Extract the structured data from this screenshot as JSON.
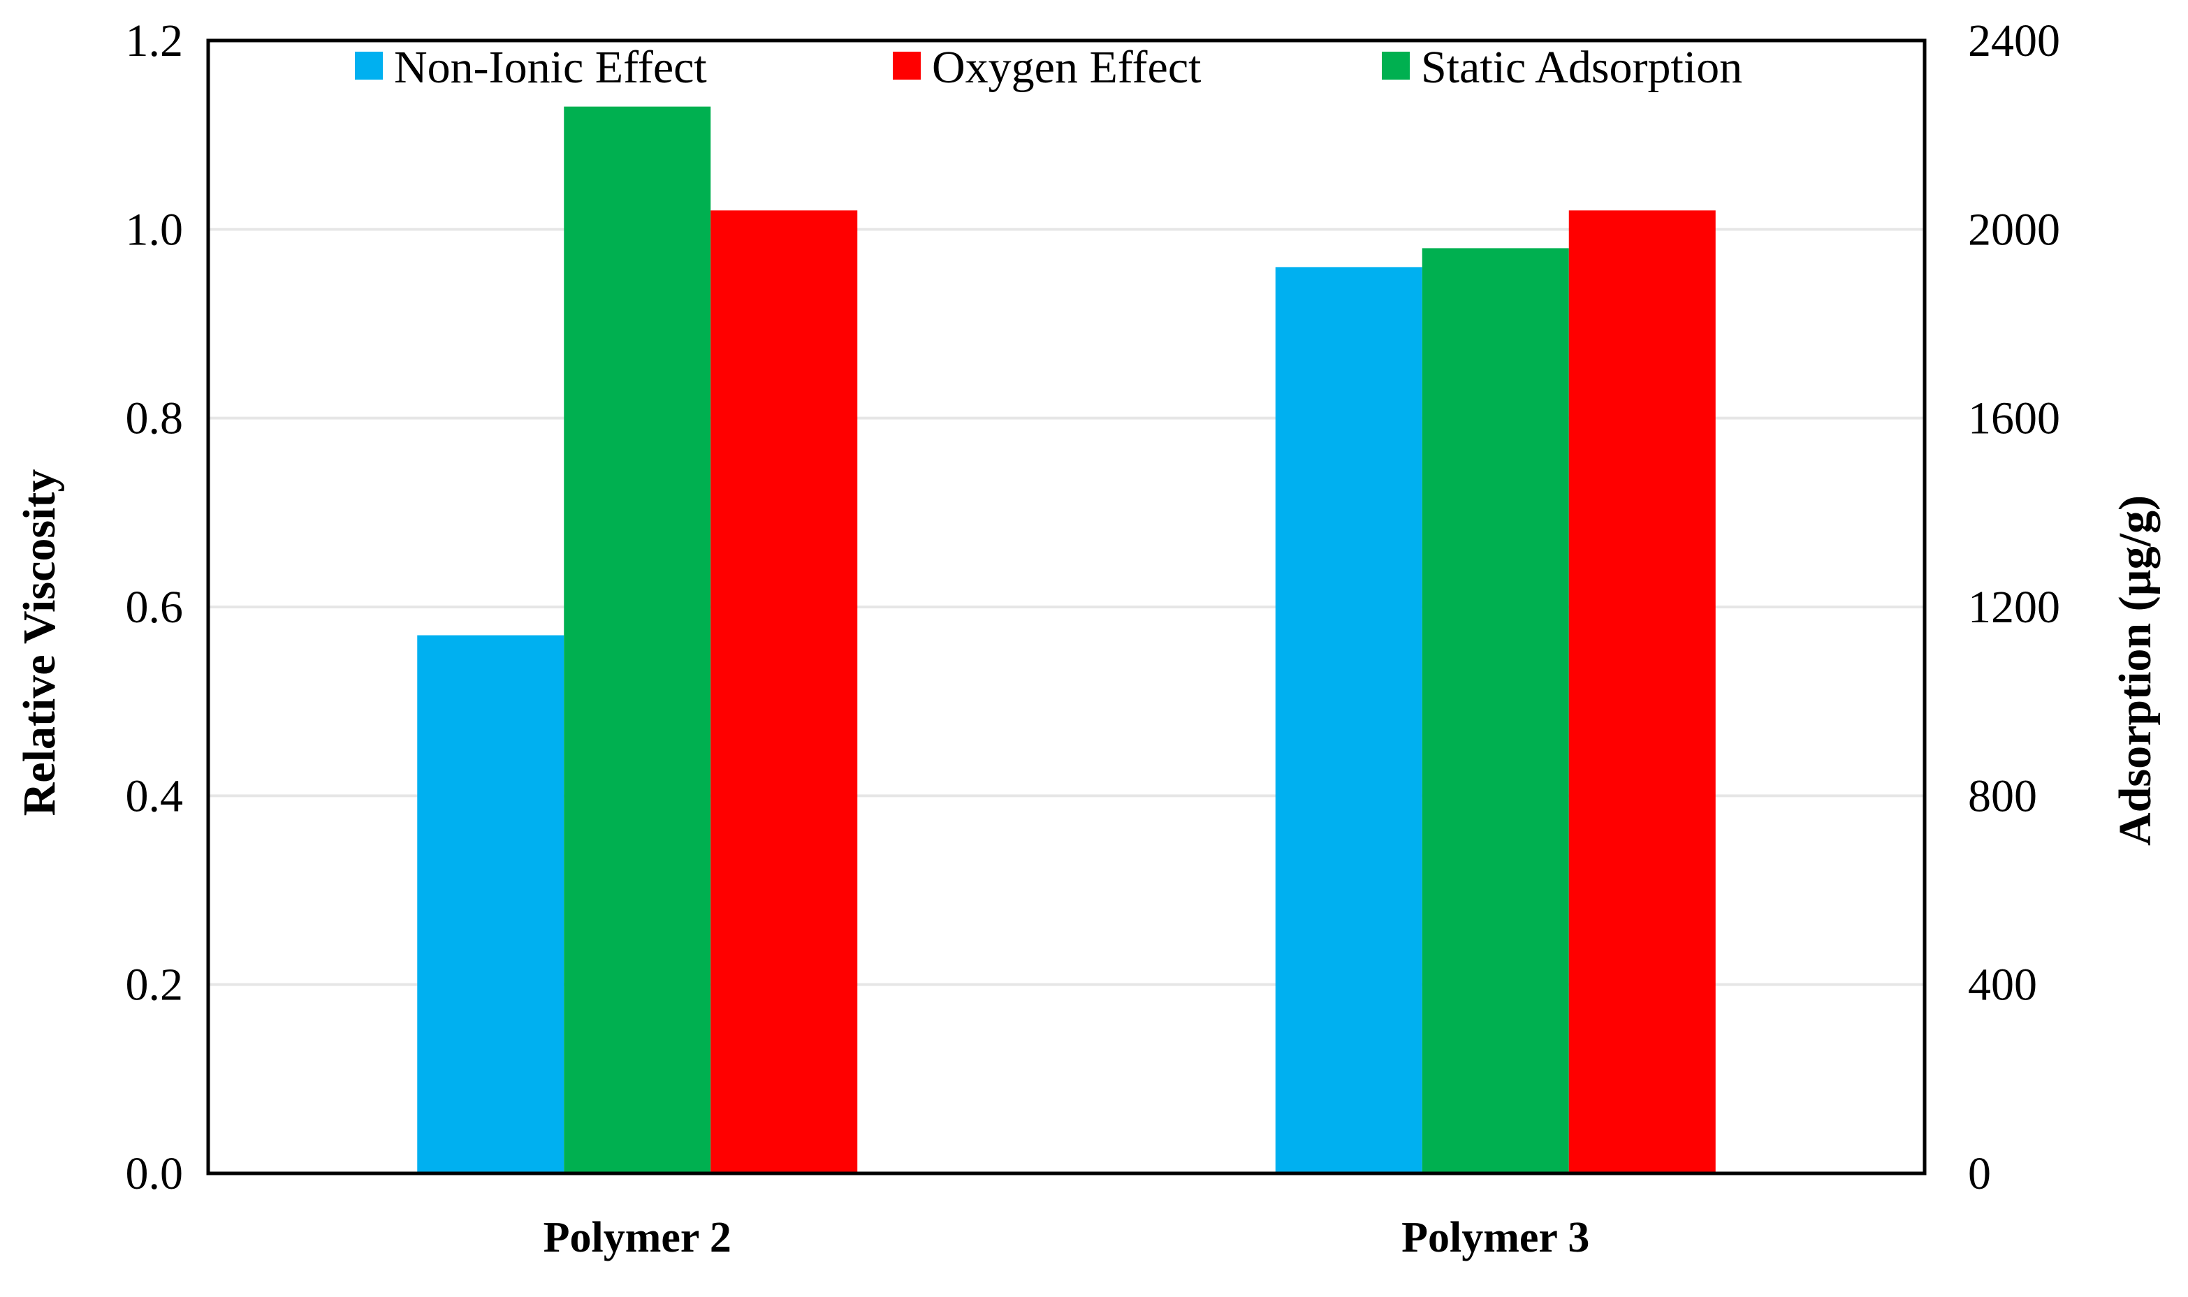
{
  "chart_data": {
    "type": "bar",
    "categories": [
      "Polymer 2",
      "Polymer 3"
    ],
    "series": [
      {
        "name": "Non-Ionic Effect",
        "axis": "left",
        "color": "#00B0F0",
        "values": [
          0.57,
          0.96
        ]
      },
      {
        "name": "Static Adsorption",
        "axis": "right",
        "color": "#00B050",
        "values": [
          2260,
          1960
        ]
      },
      {
        "name": "Oxygen Effect",
        "axis": "left",
        "color": "#FF0000",
        "values": [
          1.02,
          1.02
        ]
      }
    ],
    "legend": [
      "Non-Ionic Effect",
      "Oxygen Effect",
      "Static Adsorption"
    ],
    "legend_colors": [
      "#00B0F0",
      "#FF0000",
      "#00B050"
    ],
    "ylabel": "Relative Viscosity",
    "y2label": "Adsorption (µg/g)",
    "ylim": [
      0,
      1.2
    ],
    "y2lim": [
      0,
      2400
    ],
    "yticks": [
      "0.0",
      "0.2",
      "0.4",
      "0.6",
      "0.8",
      "1.0",
      "1.2"
    ],
    "y2ticks": [
      "0",
      "400",
      "800",
      "1200",
      "1600",
      "2000",
      "2400"
    ],
    "grid": true,
    "legend_position": "top"
  }
}
